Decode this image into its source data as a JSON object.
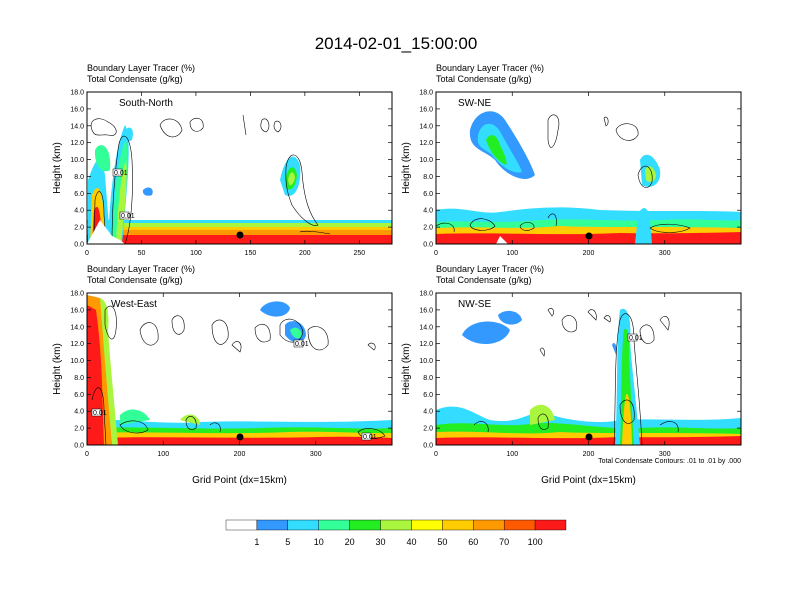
{
  "title": "2014-02-01_15:00:00",
  "colors": {
    "frame": "#000000",
    "contour": "#000000",
    "marker": "#000000",
    "terrain": "#ffffff"
  },
  "chart_data": [
    {
      "type": "heatmap",
      "panel": "top-left",
      "label": "South-North",
      "subtitle_1": "Boundary Layer Tracer   (%)",
      "subtitle_2": "Total Condensate   (g/kg)",
      "ylabel": "Height (km)",
      "xlabel": "",
      "xlim": [
        0,
        280
      ],
      "ylim": [
        0,
        18
      ],
      "xticks": [
        "0",
        "50",
        "100",
        "150",
        "200",
        "250"
      ],
      "yticks": [
        "0.0",
        "2.0",
        "4.0",
        "6.0",
        "8.0",
        "10.0",
        "12.0",
        "14.0",
        "16.0",
        "18.0"
      ],
      "contour_labels": [
        "0.01",
        "0.01"
      ],
      "marker_x": 140
    },
    {
      "type": "heatmap",
      "panel": "top-right",
      "label": "SW-NE",
      "subtitle_1": "Boundary Layer Tracer   (%)",
      "subtitle_2": "Total Condensate   (g/kg)",
      "ylabel": "Height (km)",
      "xlabel": "",
      "xlim": [
        0,
        400
      ],
      "ylim": [
        0,
        18
      ],
      "xticks": [
        "0",
        "100",
        "200",
        "300"
      ],
      "yticks": [
        "0.0",
        "2.0",
        "4.0",
        "6.0",
        "8.0",
        "10.0",
        "12.0",
        "14.0",
        "16.0",
        "18.0"
      ],
      "contour_labels": [],
      "marker_x": 200
    },
    {
      "type": "heatmap",
      "panel": "bottom-left",
      "label": "West-East",
      "subtitle_1": "Boundary Layer Tracer   (%)",
      "subtitle_2": "Total Condensate   (g/kg)",
      "ylabel": "Height (km)",
      "xlabel": "Grid Point (dx=15km)",
      "xlim": [
        0,
        400
      ],
      "ylim": [
        0,
        18
      ],
      "xticks": [
        "0",
        "100",
        "200",
        "300"
      ],
      "yticks": [
        "0.0",
        "2.0",
        "4.0",
        "6.0",
        "8.0",
        "10.0",
        "12.0",
        "14.0",
        "16.0",
        "18.0"
      ],
      "contour_labels": [
        "0.01",
        "0.01",
        "0.01"
      ],
      "marker_x": 200
    },
    {
      "type": "heatmap",
      "panel": "bottom-right",
      "label": "NW-SE",
      "subtitle_1": "Boundary Layer Tracer   (%)",
      "subtitle_2": "Total Condensate   (g/kg)",
      "ylabel": "Height (km)",
      "xlabel": "Grid Point (dx=15km)",
      "xlim": [
        0,
        400
      ],
      "ylim": [
        0,
        18
      ],
      "xticks": [
        "0",
        "100",
        "200",
        "300"
      ],
      "yticks": [
        "0.0",
        "2.0",
        "4.0",
        "6.0",
        "8.0",
        "10.0",
        "12.0",
        "14.0",
        "16.0",
        "18.0"
      ],
      "contour_labels": [
        "0.01"
      ],
      "marker_x": 200,
      "footnote": "Total Condensate Contours: .01 to .01 by .000"
    }
  ],
  "colorbar": {
    "ticks": [
      "1",
      "5",
      "10",
      "20",
      "30",
      "40",
      "50",
      "60",
      "70",
      "100"
    ],
    "colors": [
      "#ffffff",
      "#3399ff",
      "#33ddff",
      "#33ff99",
      "#22ee22",
      "#aaf53d",
      "#ffff00",
      "#ffcc00",
      "#ff9900",
      "#ff5a00",
      "#ff1a1a"
    ]
  }
}
